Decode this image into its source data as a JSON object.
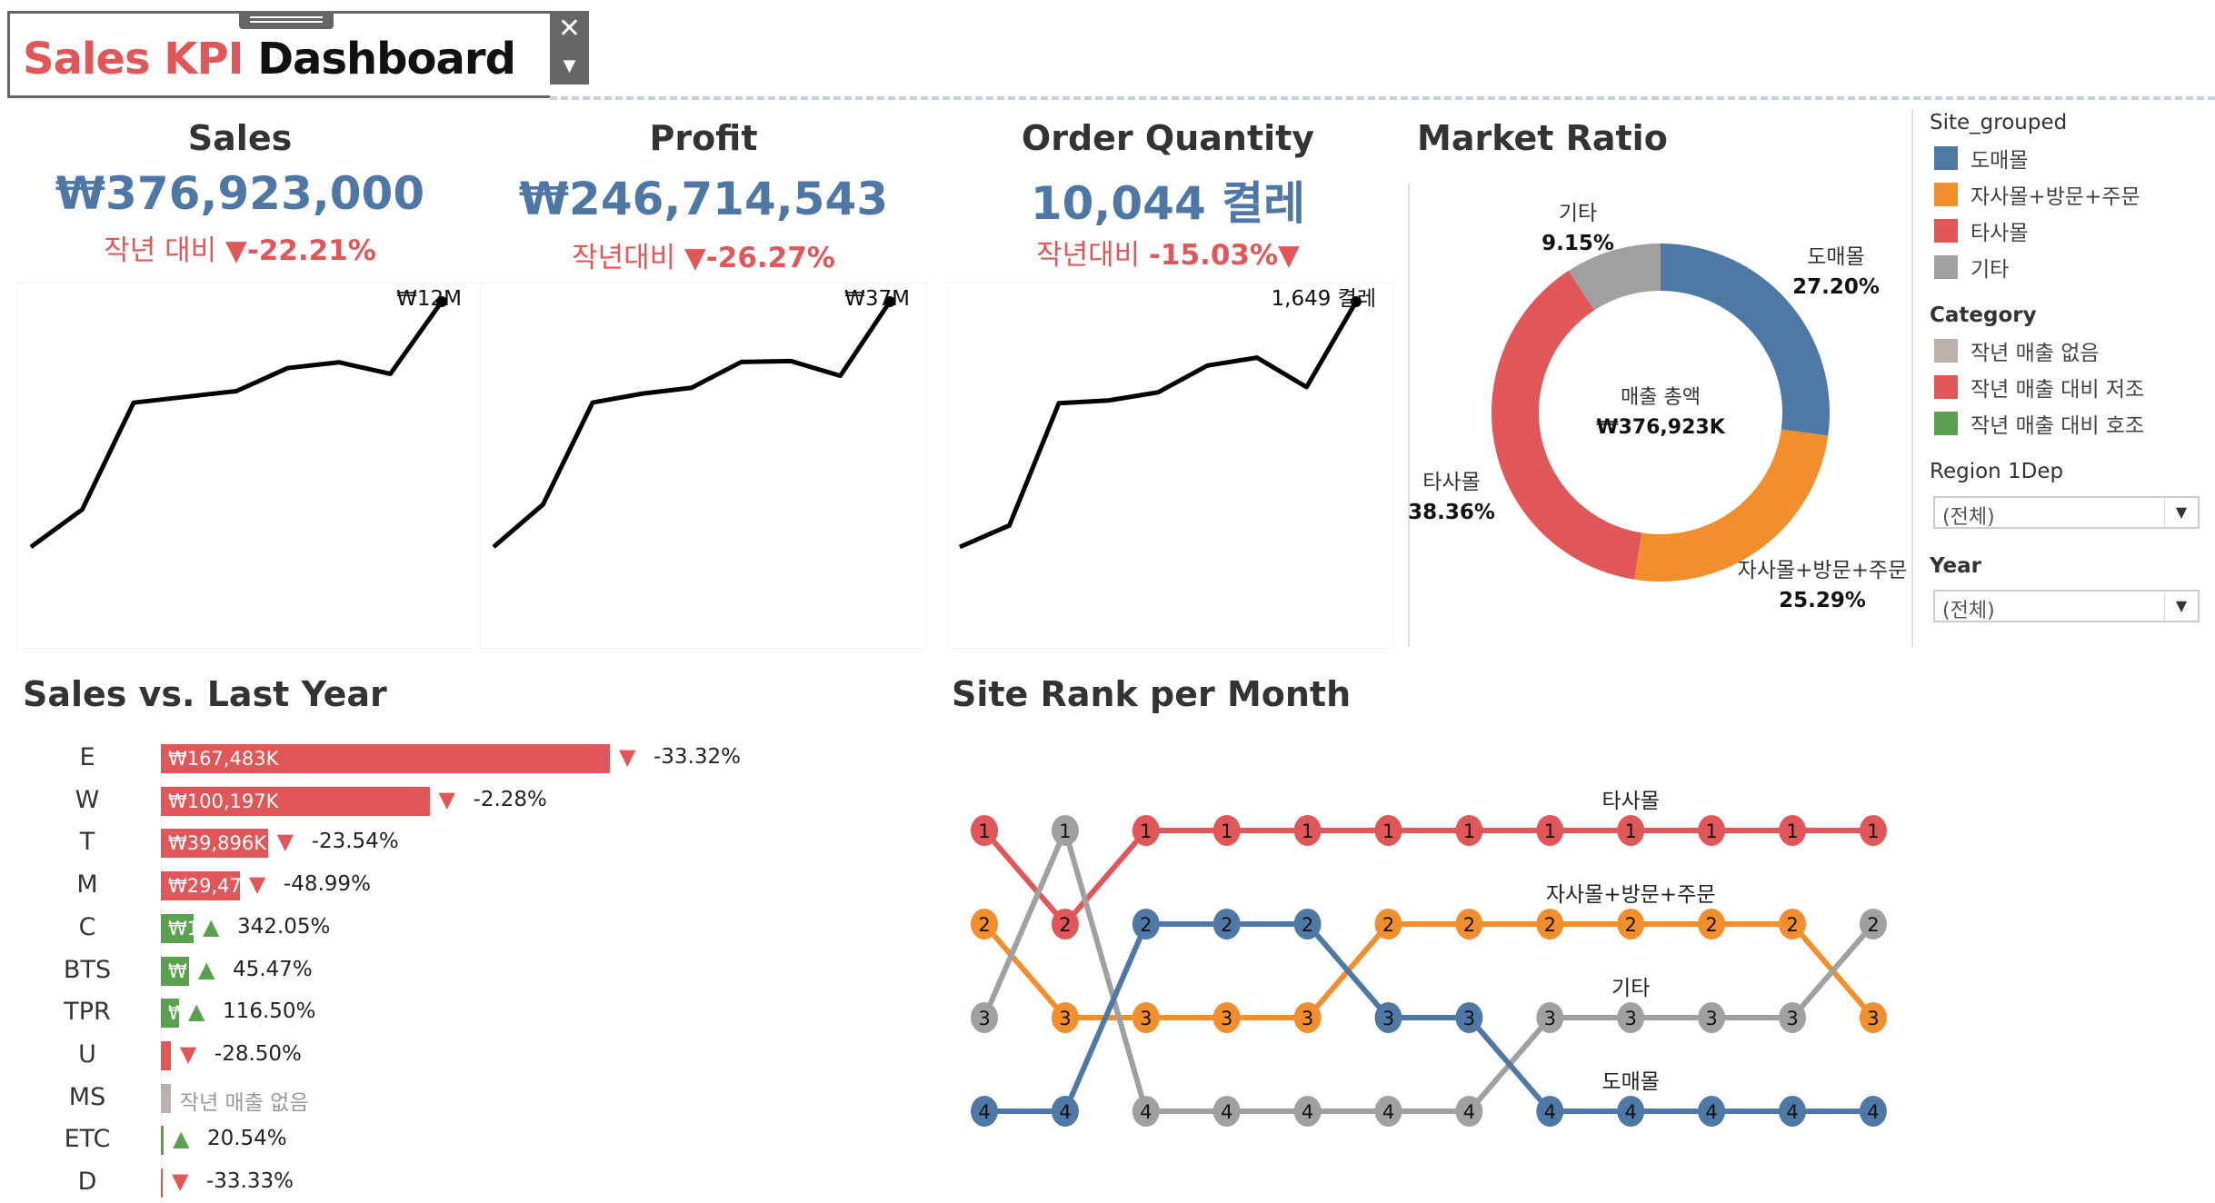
{
  "header": {
    "title_part1": "Sales KPI",
    "title_part2": "Dashboard",
    "close_icon": "x-close-icon",
    "menu_icon": "caret-down-icon"
  },
  "colors": {
    "accent_red": "#e15759",
    "value_blue": "#4f77a5",
    "blue": "#4e79a7",
    "orange": "#f28e2b",
    "red": "#e15759",
    "gray": "#a0a0a0",
    "green": "#59a14f",
    "beige": "#bab0ac"
  },
  "kpis": [
    {
      "title": "Sales",
      "value": "₩376,923,000",
      "sub_label": "작년 대비 ",
      "sub_change": "▼-22.21%",
      "sparkline": {
        "last_label": "₩12M",
        "values": [
          3.5,
          4.8,
          8.5,
          8.7,
          8.9,
          9.7,
          9.9,
          9.5,
          12
        ]
      }
    },
    {
      "title": "Profit",
      "value": "₩246,714,543",
      "sub_label": "작년대비 ",
      "sub_change": "▼-26.27%",
      "sparkline": {
        "last_label": "₩37M",
        "values": [
          12.2,
          16.5,
          26.8,
          27.7,
          28.3,
          30.9,
          31.0,
          29.5,
          37
        ]
      }
    },
    {
      "title": "Order Quantity",
      "value": "10,044 켤레",
      "sub_label": "작년대비 ",
      "sub_change": "-15.03%▼",
      "sparkline": {
        "last_label": "1,649 켤레",
        "values": [
          405,
          514,
          1134,
          1148,
          1189,
          1325,
          1365,
          1216,
          1649
        ]
      }
    }
  ],
  "market_ratio": {
    "title": "Market Ratio",
    "center_label": "매출 총액",
    "center_value": "₩376,923K",
    "slices": [
      {
        "name": "도매몰",
        "pct": 27.2,
        "label": "27.20%",
        "color": "#4e79a7"
      },
      {
        "name": "자사몰+방문+주문",
        "pct": 25.29,
        "label": "25.29%",
        "color": "#f28e2b"
      },
      {
        "name": "타사몰",
        "pct": 38.36,
        "label": "38.36%",
        "color": "#e15759"
      },
      {
        "name": "기타",
        "pct": 9.15,
        "label": "9.15%",
        "color": "#a0a0a0"
      }
    ]
  },
  "legend": {
    "site_title": "Site_grouped",
    "site_items": [
      {
        "label": "도매몰",
        "color": "#4e79a7"
      },
      {
        "label": "자사몰+방문+주문",
        "color": "#f28e2b"
      },
      {
        "label": "타사몰",
        "color": "#e15759"
      },
      {
        "label": "기타",
        "color": "#a0a0a0"
      }
    ],
    "category_title": "Category",
    "category_items": [
      {
        "label": "작년 매출 없음",
        "color": "#bab0ac"
      },
      {
        "label": "작년 매출 대비 저조",
        "color": "#e15759"
      },
      {
        "label": "작년 매출 대비 호조",
        "color": "#59a14f"
      }
    ]
  },
  "filters": {
    "region_label": "Region 1Dep",
    "region_value": "(전체)",
    "year_label": "Year",
    "year_value": "(전체)"
  },
  "sales_vs_last_year": {
    "title": "Sales vs. Last Year",
    "rows": [
      {
        "cat": "E",
        "value_k": 167483,
        "bar_label": "₩167,483K",
        "change": "-33.32%",
        "dir": "down",
        "status": "low"
      },
      {
        "cat": "W",
        "value_k": 100197,
        "bar_label": "₩100,197K",
        "change": "-2.28%",
        "dir": "down",
        "status": "low"
      },
      {
        "cat": "T",
        "value_k": 39896,
        "bar_label": "₩39,896K",
        "change": "-23.54%",
        "dir": "down",
        "status": "low"
      },
      {
        "cat": "M",
        "value_k": 29470,
        "bar_label": "₩29,47",
        "change": "-48.99%",
        "dir": "down",
        "status": "low"
      },
      {
        "cat": "C",
        "value_k": 12200,
        "bar_label": "₩1",
        "change": "342.05%",
        "dir": "up",
        "status": "high"
      },
      {
        "cat": "BTS",
        "value_k": 10500,
        "bar_label": "₩",
        "change": "45.47%",
        "dir": "up",
        "status": "high"
      },
      {
        "cat": "TPR",
        "value_k": 6800,
        "bar_label": "₩",
        "change": "116.50%",
        "dir": "up",
        "status": "high"
      },
      {
        "cat": "U",
        "value_k": 3700,
        "bar_label": "",
        "change": "-28.50%",
        "dir": "down",
        "status": "low"
      },
      {
        "cat": "MS",
        "value_k": 3700,
        "bar_label": "",
        "change": "작년 매출 없음",
        "dir": "none",
        "status": "none"
      },
      {
        "cat": "ETC",
        "value_k": 1000,
        "bar_label": "",
        "change": "20.54%",
        "dir": "up",
        "status": "high"
      },
      {
        "cat": "D",
        "value_k": 500,
        "bar_label": "",
        "change": "-33.33%",
        "dir": "down",
        "status": "low"
      }
    ]
  },
  "chart_data": {
    "type": "line",
    "title": "Site Rank per Month",
    "x": [
      1,
      2,
      3,
      4,
      5,
      6,
      7,
      8,
      9,
      10,
      11,
      12
    ],
    "ylim": [
      4,
      1
    ],
    "series": [
      {
        "name": "타사몰",
        "color": "#e15759",
        "values": [
          1,
          2,
          1,
          1,
          1,
          1,
          1,
          1,
          1,
          1,
          1,
          1
        ]
      },
      {
        "name": "자사몰+방문+주문",
        "color": "#f28e2b",
        "values": [
          2,
          3,
          3,
          3,
          3,
          2,
          2,
          2,
          2,
          2,
          2,
          3
        ]
      },
      {
        "name": "기타",
        "color": "#a0a0a0",
        "values": [
          3,
          1,
          4,
          4,
          4,
          4,
          4,
          3,
          3,
          3,
          3,
          2
        ]
      },
      {
        "name": "도매몰",
        "color": "#4e79a7",
        "values": [
          4,
          4,
          2,
          2,
          2,
          3,
          3,
          4,
          4,
          4,
          4,
          4
        ]
      }
    ]
  }
}
